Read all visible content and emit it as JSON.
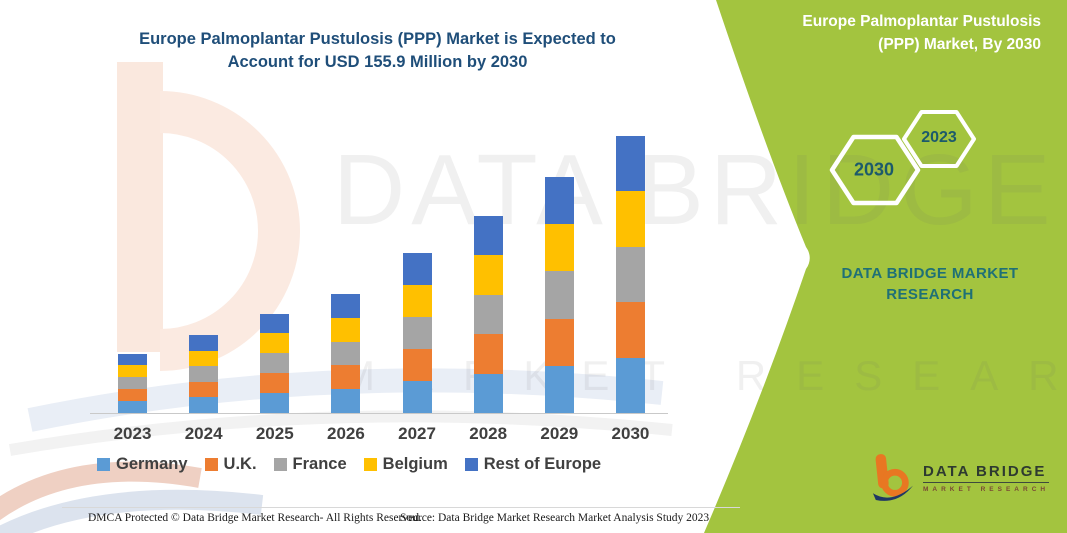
{
  "page": {
    "title_line1": "Europe Palmoplantar Pustulosis (PPP) Market is Expected to",
    "title_line2": "Account for USD 155.9 Million by 2030"
  },
  "side_panel": {
    "title_line1": "Europe Palmoplantar Pustulosis",
    "title_line2": "(PPP) Market, By 2030",
    "hexagons": [
      {
        "label": "2030"
      },
      {
        "label": "2023"
      }
    ],
    "brand_line1": "DATA BRIDGE MARKET",
    "brand_line2": "RESEARCH"
  },
  "watermark": {
    "line1": "DATA BRIDGE",
    "line2": "MARKET RESEARCH"
  },
  "logo": {
    "name": "DATA BRIDGE",
    "subtitle": "MARKET RESEARCH"
  },
  "footer": {
    "left": "DMCA Protected © Data Bridge Market Research-  All Rights Reserved.",
    "source": "Source: Data Bridge Market Research  Market Analysis Study 2023"
  },
  "colors": {
    "panel_green": "#A3C43F",
    "title_blue": "#1F4E79",
    "brand_teal": "#1F7076",
    "hexagon_text": "#1C5A6B",
    "axis_label_gray": "#404040"
  },
  "chart_data": {
    "type": "bar",
    "stacked": true,
    "title": "Europe Palmoplantar Pustulosis (PPP) Market",
    "unit": "USD Million",
    "categories": [
      "2023",
      "2024",
      "2025",
      "2026",
      "2027",
      "2028",
      "2029",
      "2030"
    ],
    "series": [
      {
        "name": "Germany",
        "color": "#5B9BD5",
        "values": [
          6.7,
          8.8,
          11.2,
          13.4,
          18.0,
          22.2,
          26.6,
          31.2
        ]
      },
      {
        "name": "U.K.",
        "color": "#ED7D31",
        "values": [
          6.7,
          8.8,
          11.2,
          13.4,
          18.0,
          22.2,
          26.6,
          31.2
        ]
      },
      {
        "name": "France",
        "color": "#A5A5A5",
        "values": [
          6.7,
          8.8,
          11.2,
          13.4,
          18.0,
          22.2,
          26.6,
          31.2
        ]
      },
      {
        "name": "Belgium",
        "color": "#FFC000",
        "values": [
          6.7,
          8.8,
          11.2,
          13.4,
          18.0,
          22.2,
          26.6,
          31.2
        ]
      },
      {
        "name": "Rest of Europe",
        "color": "#4472C4",
        "values": [
          6.6,
          8.8,
          11.0,
          13.4,
          18.0,
          22.2,
          26.6,
          31.1
        ]
      }
    ],
    "totals": [
      33.4,
      44.0,
      55.8,
      67.0,
      90.0,
      111.0,
      133.0,
      155.9
    ],
    "ylim": [
      0,
      160
    ],
    "grid": false,
    "y_axis_shown": false,
    "legend_position": "bottom"
  }
}
